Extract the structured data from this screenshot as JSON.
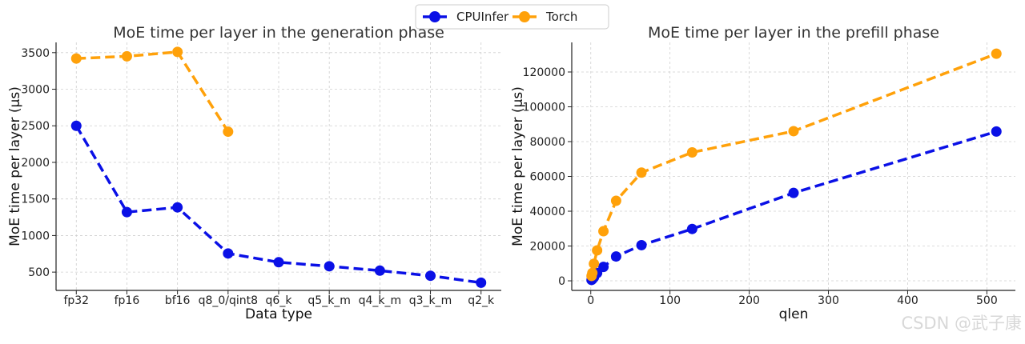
{
  "watermark": "CSDN @武子康",
  "legend": {
    "items": [
      {
        "label": "CPUInfer",
        "color": "#0a10e6"
      },
      {
        "label": "Torch",
        "color": "#ffa10a"
      }
    ]
  },
  "chart_data": [
    {
      "type": "line",
      "title": "MoE time per layer in the generation phase",
      "xlabel": "Data type",
      "ylabel": "MoE time per layer (µs)",
      "categories": [
        "fp32",
        "fp16",
        "bf16",
        "q8_0/qint8",
        "q6_k",
        "q5_k_m",
        "q4_k_m",
        "q3_k_m",
        "q2_k"
      ],
      "yticks": [
        500,
        1000,
        1500,
        2000,
        2500,
        3000,
        3500
      ],
      "ytick_labels": [
        "500",
        "1000",
        "1500",
        "2000",
        "2500",
        "3000",
        "3500"
      ],
      "ylim": [
        250,
        3640
      ],
      "grid": true,
      "series": [
        {
          "name": "CPUInfer",
          "color": "#0a10e6",
          "values": [
            2500,
            1320,
            1385,
            755,
            635,
            580,
            520,
            450,
            355
          ]
        },
        {
          "name": "Torch",
          "color": "#ffa10a",
          "values": [
            3420,
            3450,
            3510,
            2420,
            null,
            null,
            null,
            null,
            null
          ]
        }
      ]
    },
    {
      "type": "line",
      "title": "MoE time per layer in the prefill phase",
      "xlabel": "qlen",
      "ylabel": "MoE time per layer (µs)",
      "xticks": [
        0,
        100,
        200,
        300,
        400,
        500
      ],
      "xtick_labels": [
        "0",
        "100",
        "200",
        "300",
        "400",
        "500"
      ],
      "yticks": [
        0,
        20000,
        40000,
        60000,
        80000,
        100000,
        120000
      ],
      "ytick_labels": [
        "0",
        "20000",
        "40000",
        "60000",
        "80000",
        "100000",
        "120000"
      ],
      "xlim": [
        -24,
        536
      ],
      "ylim": [
        -5500,
        137000
      ],
      "grid": true,
      "series": [
        {
          "name": "CPUInfer",
          "color": "#0a10e6",
          "x": [
            1,
            2,
            4,
            8,
            16,
            32,
            64,
            128,
            256,
            512
          ],
          "y": [
            500,
            900,
            2000,
            4500,
            8000,
            14000,
            20500,
            29800,
            50500,
            85800
          ]
        },
        {
          "name": "Torch",
          "color": "#ffa10a",
          "x": [
            1,
            2,
            4,
            8,
            16,
            32,
            64,
            128,
            256,
            512
          ],
          "y": [
            2800,
            4500,
            9800,
            17500,
            28500,
            46000,
            62200,
            73800,
            86000,
            130500
          ]
        }
      ]
    }
  ]
}
